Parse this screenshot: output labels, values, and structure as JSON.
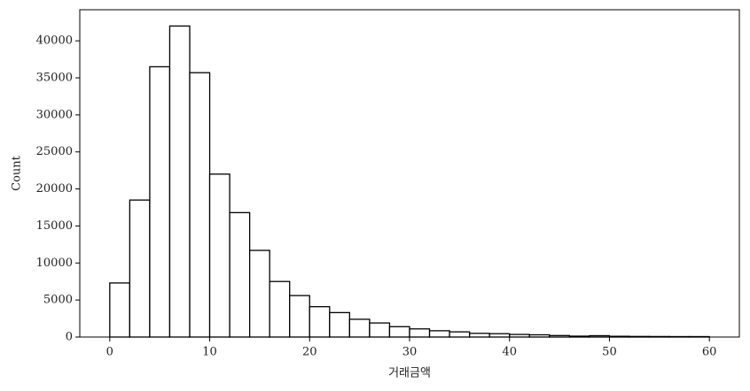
{
  "chart_data": {
    "type": "histogram",
    "x_label": "거래금액",
    "y_label": "Count",
    "bins": [
      0,
      2,
      4,
      6,
      8,
      10,
      12,
      14,
      16,
      18,
      20,
      22,
      24,
      26,
      28,
      30,
      32,
      34,
      36,
      38,
      40,
      42,
      44,
      46,
      48,
      50,
      52,
      54,
      56,
      58,
      60
    ],
    "counts": [
      7300,
      18500,
      36500,
      42000,
      35700,
      22000,
      16800,
      11700,
      7500,
      5600,
      4100,
      3300,
      2400,
      1900,
      1400,
      1100,
      850,
      700,
      500,
      450,
      350,
      300,
      200,
      120,
      180,
      100,
      80,
      70,
      60,
      60
    ],
    "color": "#ffffff",
    "edgecolor": "#000000",
    "xlim": [
      -3,
      63
    ],
    "xticks": [
      0,
      10,
      20,
      30,
      40,
      50,
      60
    ],
    "ylim": [
      0,
      44200
    ],
    "yticks": [
      0,
      5000,
      10000,
      15000,
      20000,
      25000,
      30000,
      35000,
      40000
    ]
  }
}
